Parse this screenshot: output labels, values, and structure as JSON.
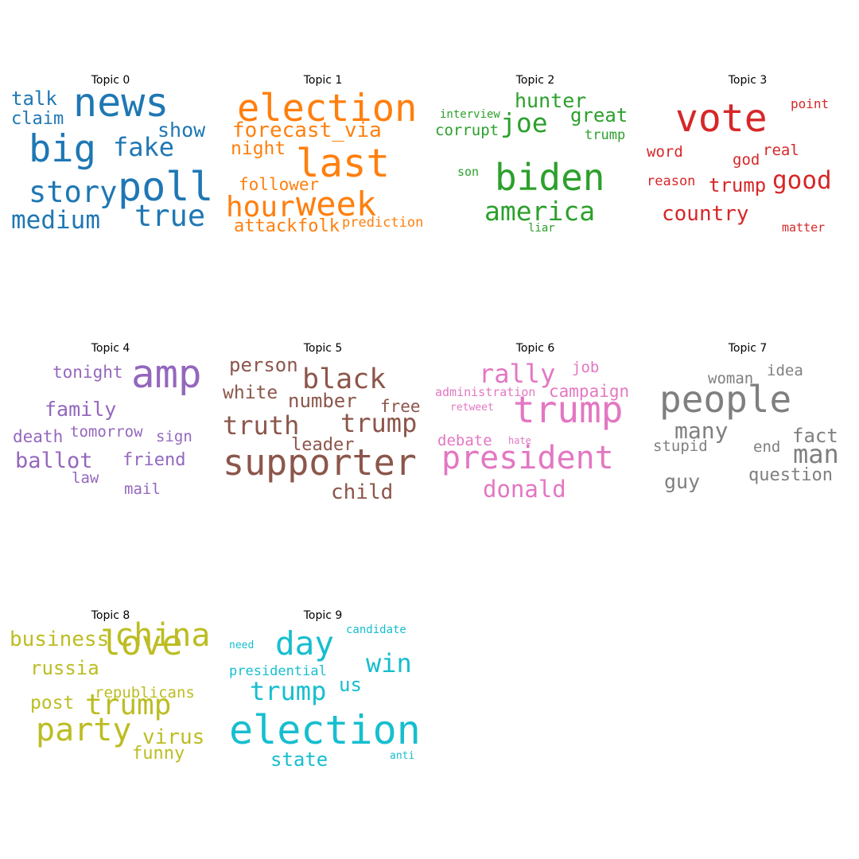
{
  "chart_data": {
    "type": "wordcloud",
    "topics": [
      {
        "title": "Topic 0",
        "color": "#1f77b4",
        "words": [
          {
            "text": "news",
            "weight": 1.0
          },
          {
            "text": "poll",
            "weight": 0.98
          },
          {
            "text": "big",
            "weight": 0.95
          },
          {
            "text": "true",
            "weight": 0.78
          },
          {
            "text": "story",
            "weight": 0.77
          },
          {
            "text": "fake",
            "weight": 0.68
          },
          {
            "text": "medium",
            "weight": 0.66
          },
          {
            "text": "show",
            "weight": 0.58
          },
          {
            "text": "talk",
            "weight": 0.55
          },
          {
            "text": "claim",
            "weight": 0.52
          }
        ]
      },
      {
        "title": "Topic 1",
        "color": "#ff7f0e",
        "words": [
          {
            "text": "election",
            "weight": 1.0
          },
          {
            "text": "last",
            "weight": 0.98
          },
          {
            "text": "week",
            "weight": 0.88
          },
          {
            "text": "hour",
            "weight": 0.72
          },
          {
            "text": "forecast_via",
            "weight": 0.55
          },
          {
            "text": "night",
            "weight": 0.48
          },
          {
            "text": "follower",
            "weight": 0.46
          },
          {
            "text": "attack",
            "weight": 0.45
          },
          {
            "text": "folk",
            "weight": 0.44
          },
          {
            "text": "prediction",
            "weight": 0.36
          }
        ]
      },
      {
        "title": "Topic 2",
        "color": "#2ca02c",
        "words": [
          {
            "text": "biden",
            "weight": 1.0
          },
          {
            "text": "america",
            "weight": 0.72
          },
          {
            "text": "joe",
            "weight": 0.7
          },
          {
            "text": "hunter",
            "weight": 0.55
          },
          {
            "text": "great",
            "weight": 0.54
          },
          {
            "text": "corrupt",
            "weight": 0.42
          },
          {
            "text": "trump",
            "weight": 0.37
          },
          {
            "text": "interview",
            "weight": 0.32
          },
          {
            "text": "son",
            "weight": 0.31
          },
          {
            "text": "liar",
            "weight": 0.3
          }
        ]
      },
      {
        "title": "Topic 3",
        "color": "#d62728",
        "words": [
          {
            "text": "vote",
            "weight": 1.0
          },
          {
            "text": "good",
            "weight": 0.7
          },
          {
            "text": "country",
            "weight": 0.6
          },
          {
            "text": "trump",
            "weight": 0.52
          },
          {
            "text": "word",
            "weight": 0.42
          },
          {
            "text": "real",
            "weight": 0.42
          },
          {
            "text": "god",
            "weight": 0.41
          },
          {
            "text": "reason",
            "weight": 0.38
          },
          {
            "text": "point",
            "weight": 0.35
          },
          {
            "text": "matter",
            "weight": 0.34
          }
        ]
      },
      {
        "title": "Topic 4",
        "color": "#9467bd",
        "words": [
          {
            "text": "amp",
            "weight": 1.0
          },
          {
            "text": "ballot",
            "weight": 0.55
          },
          {
            "text": "family",
            "weight": 0.5
          },
          {
            "text": "friend",
            "weight": 0.46
          },
          {
            "text": "tonight",
            "weight": 0.44
          },
          {
            "text": "death",
            "weight": 0.44
          },
          {
            "text": "tomorrow",
            "weight": 0.42
          },
          {
            "text": "sign",
            "weight": 0.41
          },
          {
            "text": "mail",
            "weight": 0.41
          },
          {
            "text": "law",
            "weight": 0.4
          }
        ]
      },
      {
        "title": "Topic 5",
        "color": "#8c564b",
        "words": [
          {
            "text": "supporter",
            "weight": 1.0
          },
          {
            "text": "black",
            "weight": 0.74
          },
          {
            "text": "truth",
            "weight": 0.7
          },
          {
            "text": "trump",
            "weight": 0.7
          },
          {
            "text": "number",
            "weight": 0.5
          },
          {
            "text": "person",
            "weight": 0.5
          },
          {
            "text": "child",
            "weight": 0.5
          },
          {
            "text": "white",
            "weight": 0.48
          },
          {
            "text": "leader",
            "weight": 0.46
          },
          {
            "text": "free",
            "weight": 0.45
          }
        ]
      },
      {
        "title": "Topic 6",
        "color": "#e377c2",
        "words": [
          {
            "text": "trump",
            "weight": 1.0
          },
          {
            "text": "president",
            "weight": 0.92
          },
          {
            "text": "rally",
            "weight": 0.66
          },
          {
            "text": "donald",
            "weight": 0.6
          },
          {
            "text": "campaign",
            "weight": 0.45
          },
          {
            "text": "job",
            "weight": 0.41
          },
          {
            "text": "debate",
            "weight": 0.41
          },
          {
            "text": "administration",
            "weight": 0.33
          },
          {
            "text": "retweet",
            "weight": 0.28
          },
          {
            "text": "hate",
            "weight": 0.27
          }
        ]
      },
      {
        "title": "Topic 7",
        "color": "#7f7f7f",
        "words": [
          {
            "text": "people",
            "weight": 1.0
          },
          {
            "text": "man",
            "weight": 0.64
          },
          {
            "text": "many",
            "weight": 0.6
          },
          {
            "text": "guy",
            "weight": 0.52
          },
          {
            "text": "fact",
            "weight": 0.5
          },
          {
            "text": "question",
            "weight": 0.49
          },
          {
            "text": "woman",
            "weight": 0.41
          },
          {
            "text": "stupid",
            "weight": 0.41
          },
          {
            "text": "idea",
            "weight": 0.4
          },
          {
            "text": "end",
            "weight": 0.4
          }
        ]
      },
      {
        "title": "Topic 8",
        "color": "#bcbd22",
        "words": [
          {
            "text": "love",
            "weight": 1.0
          },
          {
            "text": "china",
            "weight": 0.9
          },
          {
            "text": "party",
            "weight": 0.87
          },
          {
            "text": "trump",
            "weight": 0.84
          },
          {
            "text": "business",
            "weight": 0.56
          },
          {
            "text": "virus",
            "weight": 0.56
          },
          {
            "text": "russia",
            "weight": 0.55
          },
          {
            "text": "post",
            "weight": 0.5
          },
          {
            "text": "funny",
            "weight": 0.48
          },
          {
            "text": "republicans",
            "weight": 0.46
          }
        ]
      },
      {
        "title": "Topic 9",
        "color": "#17becf",
        "words": [
          {
            "text": "election",
            "weight": 1.0
          },
          {
            "text": "day",
            "weight": 0.92
          },
          {
            "text": "trump",
            "weight": 0.72
          },
          {
            "text": "win",
            "weight": 0.7
          },
          {
            "text": "state",
            "weight": 0.55
          },
          {
            "text": "us",
            "weight": 0.55
          },
          {
            "text": "presidential",
            "weight": 0.4
          },
          {
            "text": "candidate",
            "weight": 0.32
          },
          {
            "text": "need",
            "weight": 0.31
          },
          {
            "text": "anti",
            "weight": 0.3
          }
        ]
      }
    ]
  }
}
